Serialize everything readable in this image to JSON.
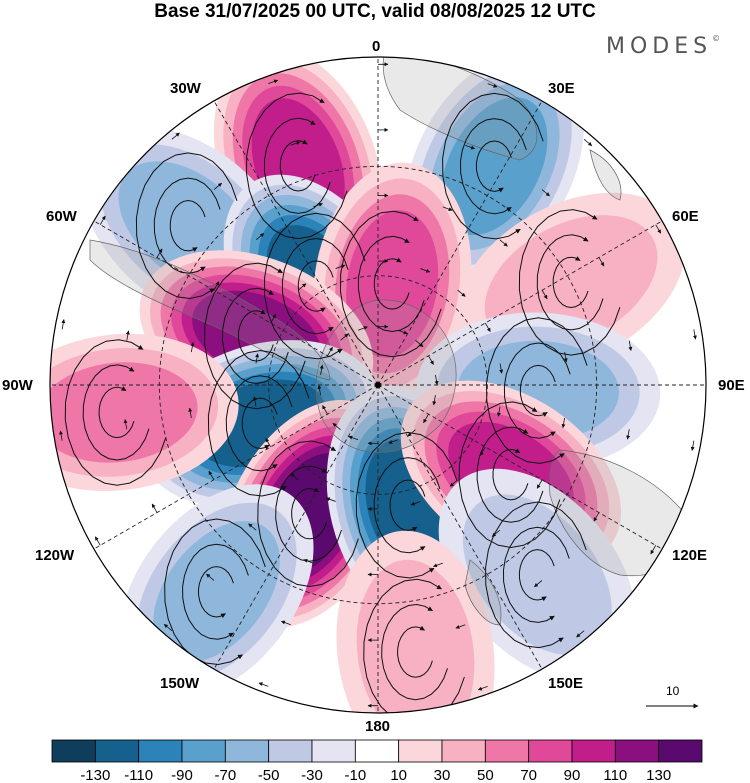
{
  "title": "Base 31/07/2025 00 UTC, valid 08/08/2025 12 UTC",
  "brand": "MODES",
  "brand_mark": "©",
  "longitude_labels": {
    "lon_0": "0",
    "lon_30E": "30E",
    "lon_60E": "60E",
    "lon_90E": "90E",
    "lon_120E": "120E",
    "lon_150E": "150E",
    "lon_180": "180",
    "lon_150W": "150W",
    "lon_120W": "120W",
    "lon_90W": "90W",
    "lon_60W": "60W",
    "lon_30W": "30W"
  },
  "reference_vector": {
    "label": "10"
  },
  "colorbar": {
    "tick_labels": [
      "-130",
      "-110",
      "-90",
      "-70",
      "-50",
      "-30",
      "-10",
      "10",
      "30",
      "50",
      "70",
      "90",
      "110",
      "130"
    ],
    "colors": [
      "#0f3d5c",
      "#16608e",
      "#2b83ba",
      "#5aa0cc",
      "#8fb7dc",
      "#bfc9e6",
      "#e4e4f2",
      "#ffffff",
      "#fbd7dc",
      "#f7b1c3",
      "#ef77a8",
      "#e0489a",
      "#c11e8c",
      "#8c0f80",
      "#5a0a6e"
    ]
  },
  "anomalies": [
    {
      "id": "a1",
      "value": 95,
      "lon": -20,
      "colat": 32
    },
    {
      "id": "a2",
      "value": -75,
      "lon": 28,
      "colat": 34
    },
    {
      "id": "a3",
      "value": -65,
      "lon": -50,
      "colat": 34
    },
    {
      "id": "a4",
      "value": -110,
      "lon": -32,
      "colat": 16
    },
    {
      "id": "a5",
      "value": 80,
      "lon": 8,
      "colat": 14
    },
    {
      "id": "a6",
      "value": 125,
      "lon": -68,
      "colat": 18
    },
    {
      "id": "a7",
      "value": 40,
      "lon": 62,
      "colat": 30
    },
    {
      "id": "a8",
      "value": -65,
      "lon": 92,
      "colat": 22
    },
    {
      "id": "a9",
      "value": -120,
      "lon": -108,
      "colat": 17
    },
    {
      "id": "a10",
      "value": 50,
      "lon": -96,
      "colat": 36
    },
    {
      "id": "a11",
      "value": 135,
      "lon": -152,
      "colat": 20
    },
    {
      "id": "a12",
      "value": -125,
      "lon": 166,
      "colat": 17
    },
    {
      "id": "a13",
      "value": 105,
      "lon": 124,
      "colat": 22
    },
    {
      "id": "a14",
      "value": -50,
      "lon": -142,
      "colat": 36
    },
    {
      "id": "a15",
      "value": -35,
      "lon": 140,
      "colat": 34
    },
    {
      "id": "a16",
      "value": 30,
      "lon": 172,
      "colat": 37
    }
  ]
}
